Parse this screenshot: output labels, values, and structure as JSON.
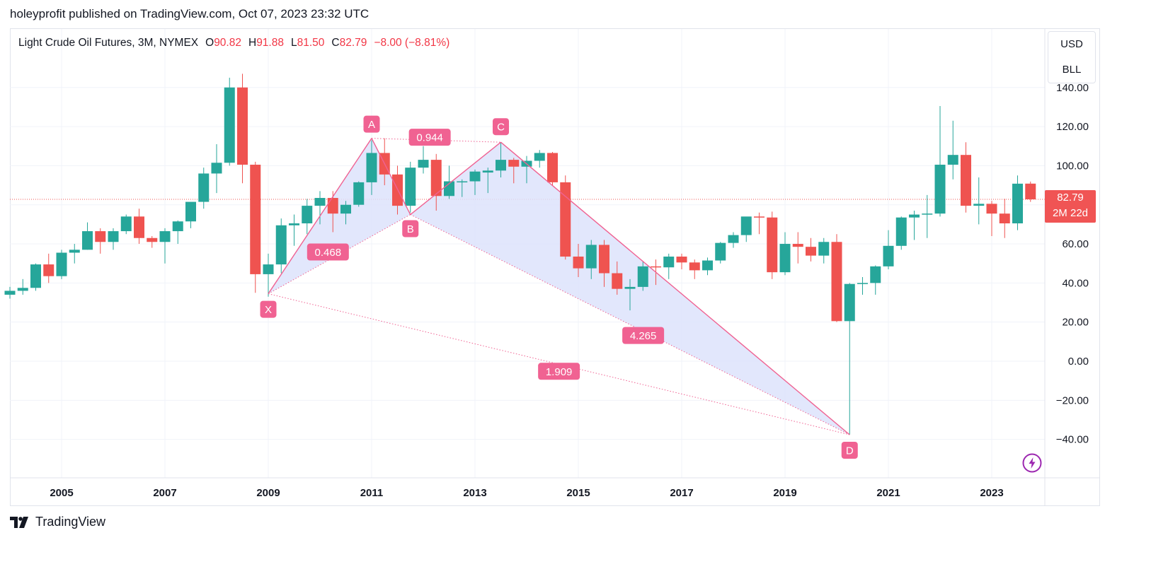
{
  "header": {
    "text": "holeyprofit published on TradingView.com, Oct 07, 2023 23:32 UTC"
  },
  "legend": {
    "symbol": "Light Crude Oil Futures, 3M, NYMEX",
    "o_label": "O",
    "o_value": "90.82",
    "h_label": "H",
    "h_value": "91.88",
    "l_label": "L",
    "l_value": "81.50",
    "c_label": "C",
    "c_value": "82.79",
    "change": "−8.00 (−8.81%)"
  },
  "unit_box": {
    "currency": "USD",
    "unit": "BLL"
  },
  "price_tag": {
    "price": "82.79",
    "countdown": "2M 22d"
  },
  "footer": {
    "logo_text": "TradingView"
  },
  "colors": {
    "up": "#26a69a",
    "down": "#ef5350",
    "pattern": "#f06292",
    "pattern_fill": "#dde3fb"
  },
  "chart_data": {
    "type": "candlestick",
    "x_ticks": [
      "2005",
      "2007",
      "2009",
      "2011",
      "2013",
      "2015",
      "2017",
      "2019",
      "2021",
      "2023"
    ],
    "y_ticks": [
      "140.00",
      "120.00",
      "100.00",
      "80.00",
      "60.00",
      "40.00",
      "20.00",
      "0.00",
      "−20.00",
      "−40.00"
    ],
    "ylim": [
      -60,
      150
    ],
    "last_price": 82.79,
    "candles": [
      {
        "t": 2004.0,
        "o": 34.0,
        "h": 38.0,
        "l": 32.0,
        "c": 36.0
      },
      {
        "t": 2004.25,
        "o": 36.0,
        "h": 42.0,
        "l": 34.0,
        "c": 37.5
      },
      {
        "t": 2004.5,
        "o": 37.5,
        "h": 50.0,
        "l": 36.0,
        "c": 49.5
      },
      {
        "t": 2004.75,
        "o": 49.5,
        "h": 55.0,
        "l": 40.0,
        "c": 43.5
      },
      {
        "t": 2005.0,
        "o": 43.5,
        "h": 57.0,
        "l": 42.0,
        "c": 55.5
      },
      {
        "t": 2005.25,
        "o": 55.5,
        "h": 60.0,
        "l": 50.0,
        "c": 57.0
      },
      {
        "t": 2005.5,
        "o": 57.0,
        "h": 71.0,
        "l": 57.0,
        "c": 66.5
      },
      {
        "t": 2005.75,
        "o": 66.5,
        "h": 68.0,
        "l": 55.0,
        "c": 61.0
      },
      {
        "t": 2006.0,
        "o": 61.0,
        "h": 68.0,
        "l": 57.0,
        "c": 66.5
      },
      {
        "t": 2006.25,
        "o": 66.5,
        "h": 75.0,
        "l": 65.0,
        "c": 74.0
      },
      {
        "t": 2006.5,
        "o": 74.0,
        "h": 78.0,
        "l": 60.0,
        "c": 63.0
      },
      {
        "t": 2006.75,
        "o": 63.0,
        "h": 64.0,
        "l": 58.0,
        "c": 61.0
      },
      {
        "t": 2007.0,
        "o": 61.0,
        "h": 68.0,
        "l": 50.0,
        "c": 66.5
      },
      {
        "t": 2007.25,
        "o": 66.5,
        "h": 72.0,
        "l": 60.0,
        "c": 71.5
      },
      {
        "t": 2007.5,
        "o": 71.5,
        "h": 80.0,
        "l": 68.0,
        "c": 81.5
      },
      {
        "t": 2007.75,
        "o": 81.5,
        "h": 99.0,
        "l": 78.0,
        "c": 96.0
      },
      {
        "t": 2008.0,
        "o": 96.0,
        "h": 111.0,
        "l": 86.0,
        "c": 101.5
      },
      {
        "t": 2008.25,
        "o": 101.5,
        "h": 145.0,
        "l": 100.0,
        "c": 140.0
      },
      {
        "t": 2008.5,
        "o": 140.0,
        "h": 147.0,
        "l": 91.0,
        "c": 100.5
      },
      {
        "t": 2008.75,
        "o": 100.5,
        "h": 102.0,
        "l": 35.0,
        "c": 44.5
      },
      {
        "t": 2009.0,
        "o": 44.5,
        "h": 55.0,
        "l": 33.0,
        "c": 49.5
      },
      {
        "t": 2009.25,
        "o": 49.5,
        "h": 73.0,
        "l": 45.0,
        "c": 69.5
      },
      {
        "t": 2009.5,
        "o": 69.5,
        "h": 75.0,
        "l": 59.0,
        "c": 70.5
      },
      {
        "t": 2009.75,
        "o": 70.5,
        "h": 83.0,
        "l": 65.0,
        "c": 79.5
      },
      {
        "t": 2010.0,
        "o": 79.5,
        "h": 87.0,
        "l": 70.0,
        "c": 83.5
      },
      {
        "t": 2010.25,
        "o": 83.5,
        "h": 87.0,
        "l": 66.0,
        "c": 75.5
      },
      {
        "t": 2010.5,
        "o": 75.5,
        "h": 82.0,
        "l": 70.0,
        "c": 80.0
      },
      {
        "t": 2010.75,
        "o": 80.0,
        "h": 92.0,
        "l": 79.0,
        "c": 91.5
      },
      {
        "t": 2011.0,
        "o": 91.5,
        "h": 113.0,
        "l": 85.0,
        "c": 106.5
      },
      {
        "t": 2011.25,
        "o": 106.5,
        "h": 114.0,
        "l": 90.0,
        "c": 95.5
      },
      {
        "t": 2011.5,
        "o": 95.5,
        "h": 100.0,
        "l": 75.0,
        "c": 79.5
      },
      {
        "t": 2011.75,
        "o": 79.5,
        "h": 102.0,
        "l": 76.0,
        "c": 99.0
      },
      {
        "t": 2012.0,
        "o": 99.0,
        "h": 110.0,
        "l": 96.0,
        "c": 103.0
      },
      {
        "t": 2012.25,
        "o": 103.0,
        "h": 106.0,
        "l": 77.0,
        "c": 84.5
      },
      {
        "t": 2012.5,
        "o": 84.5,
        "h": 100.0,
        "l": 83.0,
        "c": 92.0
      },
      {
        "t": 2012.75,
        "o": 92.0,
        "h": 93.0,
        "l": 84.0,
        "c": 92.0
      },
      {
        "t": 2013.0,
        "o": 92.0,
        "h": 98.0,
        "l": 85.0,
        "c": 97.0
      },
      {
        "t": 2013.25,
        "o": 96.5,
        "h": 99.0,
        "l": 86.0,
        "c": 97.5
      },
      {
        "t": 2013.5,
        "o": 97.5,
        "h": 112.0,
        "l": 94.0,
        "c": 103.0
      },
      {
        "t": 2013.75,
        "o": 103.0,
        "h": 104.0,
        "l": 91.0,
        "c": 99.5
      },
      {
        "t": 2014.0,
        "o": 99.5,
        "h": 105.0,
        "l": 91.0,
        "c": 102.5
      },
      {
        "t": 2014.25,
        "o": 102.5,
        "h": 108.0,
        "l": 99.0,
        "c": 106.5
      },
      {
        "t": 2014.5,
        "o": 106.5,
        "h": 107.0,
        "l": 90.0,
        "c": 91.5
      },
      {
        "t": 2014.75,
        "o": 91.5,
        "h": 95.0,
        "l": 52.0,
        "c": 53.5
      },
      {
        "t": 2015.0,
        "o": 53.5,
        "h": 60.0,
        "l": 43.0,
        "c": 47.5
      },
      {
        "t": 2015.25,
        "o": 47.5,
        "h": 62.0,
        "l": 42.0,
        "c": 59.5
      },
      {
        "t": 2015.5,
        "o": 59.5,
        "h": 62.0,
        "l": 38.0,
        "c": 45.0
      },
      {
        "t": 2015.75,
        "o": 45.0,
        "h": 51.0,
        "l": 34.0,
        "c": 37.0
      },
      {
        "t": 2016.0,
        "o": 37.0,
        "h": 42.0,
        "l": 26.0,
        "c": 38.0
      },
      {
        "t": 2016.25,
        "o": 38.0,
        "h": 51.0,
        "l": 36.0,
        "c": 48.5
      },
      {
        "t": 2016.5,
        "o": 48.5,
        "h": 52.0,
        "l": 39.0,
        "c": 48.0
      },
      {
        "t": 2016.75,
        "o": 48.0,
        "h": 55.0,
        "l": 42.0,
        "c": 53.5
      },
      {
        "t": 2017.0,
        "o": 53.5,
        "h": 55.0,
        "l": 47.0,
        "c": 50.5
      },
      {
        "t": 2017.25,
        "o": 50.5,
        "h": 52.0,
        "l": 42.0,
        "c": 46.5
      },
      {
        "t": 2017.5,
        "o": 46.5,
        "h": 53.0,
        "l": 44.0,
        "c": 51.5
      },
      {
        "t": 2017.75,
        "o": 51.5,
        "h": 61.0,
        "l": 50.0,
        "c": 60.5
      },
      {
        "t": 2018.0,
        "o": 60.5,
        "h": 66.0,
        "l": 58.0,
        "c": 64.5
      },
      {
        "t": 2018.25,
        "o": 64.5,
        "h": 73.0,
        "l": 61.0,
        "c": 74.0
      },
      {
        "t": 2018.5,
        "o": 74.0,
        "h": 76.0,
        "l": 65.0,
        "c": 73.5
      },
      {
        "t": 2018.75,
        "o": 73.5,
        "h": 76.5,
        "l": 42.0,
        "c": 45.5
      },
      {
        "t": 2019.0,
        "o": 45.5,
        "h": 66.0,
        "l": 44.0,
        "c": 60.0
      },
      {
        "t": 2019.25,
        "o": 60.0,
        "h": 66.0,
        "l": 50.0,
        "c": 58.5
      },
      {
        "t": 2019.5,
        "o": 58.5,
        "h": 63.0,
        "l": 51.0,
        "c": 54.0
      },
      {
        "t": 2019.75,
        "o": 54.0,
        "h": 63.0,
        "l": 50.0,
        "c": 61.0
      },
      {
        "t": 2020.0,
        "o": 61.0,
        "h": 65.0,
        "l": 20.0,
        "c": 20.5
      },
      {
        "t": 2020.25,
        "o": 20.5,
        "h": 40.0,
        "l": -37.6,
        "c": 39.5
      },
      {
        "t": 2020.5,
        "o": 39.5,
        "h": 43.0,
        "l": 34.0,
        "c": 40.0
      },
      {
        "t": 2020.75,
        "o": 40.0,
        "h": 49.0,
        "l": 34.0,
        "c": 48.5
      },
      {
        "t": 2021.0,
        "o": 48.5,
        "h": 67.0,
        "l": 47.0,
        "c": 59.0
      },
      {
        "t": 2021.25,
        "o": 59.0,
        "h": 74.0,
        "l": 57.0,
        "c": 73.5
      },
      {
        "t": 2021.5,
        "o": 73.5,
        "h": 77.0,
        "l": 62.0,
        "c": 75.0
      },
      {
        "t": 2021.75,
        "o": 75.0,
        "h": 85.0,
        "l": 63.0,
        "c": 75.5
      },
      {
        "t": 2022.0,
        "o": 75.5,
        "h": 130.5,
        "l": 74.0,
        "c": 100.5
      },
      {
        "t": 2022.25,
        "o": 100.5,
        "h": 123.0,
        "l": 93.0,
        "c": 105.5
      },
      {
        "t": 2022.5,
        "o": 105.5,
        "h": 112.0,
        "l": 76.0,
        "c": 79.5
      },
      {
        "t": 2022.75,
        "o": 79.5,
        "h": 94.0,
        "l": 70.0,
        "c": 80.5
      },
      {
        "t": 2023.0,
        "o": 80.5,
        "h": 82.0,
        "l": 64.0,
        "c": 75.5
      },
      {
        "t": 2023.25,
        "o": 75.5,
        "h": 83.0,
        "l": 63.0,
        "c": 70.5
      },
      {
        "t": 2023.5,
        "o": 70.5,
        "h": 95.0,
        "l": 67.0,
        "c": 90.8
      },
      {
        "t": 2023.75,
        "o": 90.82,
        "h": 91.88,
        "l": 81.5,
        "c": 82.79
      }
    ],
    "xabcd_pattern": {
      "points": [
        {
          "label": "X",
          "t": 2009.0,
          "price": 34.5
        },
        {
          "label": "A",
          "t": 2011.0,
          "price": 114.0
        },
        {
          "label": "B",
          "t": 2011.75,
          "price": 75.0
        },
        {
          "label": "C",
          "t": 2013.5,
          "price": 112.0
        },
        {
          "label": "D",
          "t": 2020.25,
          "price": -37.6
        }
      ],
      "ratios": [
        {
          "label": "0.468",
          "between": "XB"
        },
        {
          "label": "0.944",
          "between": "AC"
        },
        {
          "label": "4.265",
          "between": "BD"
        },
        {
          "label": "1.909",
          "between": "XD"
        }
      ]
    }
  }
}
